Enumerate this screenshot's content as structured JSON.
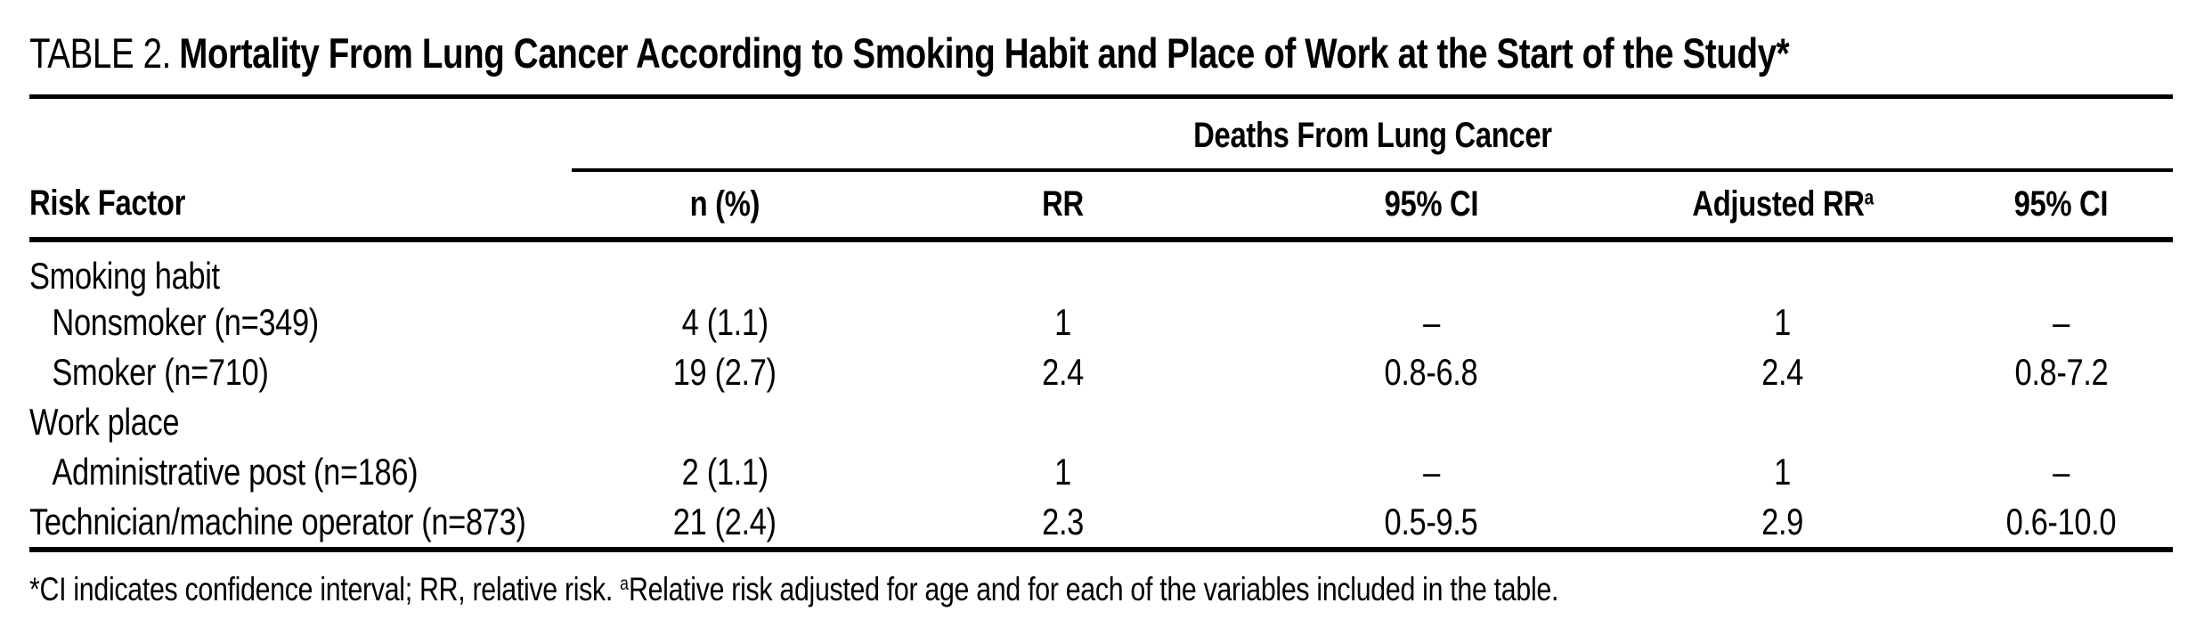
{
  "table": {
    "label": "TABLE 2.",
    "title": "Mortality From Lung Cancer According to Smoking Habit and Place of Work at the Start of the Study*",
    "spanner": "Deaths From Lung Cancer",
    "columns": [
      "Risk Factor",
      "n (%)",
      "RR",
      "95% CI",
      "Adjusted RR",
      "95% CI"
    ],
    "adjusted_rr_sup": "a",
    "rows": [
      {
        "label": "Smoking habit",
        "indent": false,
        "group": true,
        "values": [
          "",
          "",
          "",
          "",
          ""
        ]
      },
      {
        "label": "Nonsmoker (n=349)",
        "indent": true,
        "group": false,
        "values": [
          "4 (1.1)",
          "1",
          "–",
          "1",
          "–"
        ]
      },
      {
        "label": "Smoker (n=710)",
        "indent": true,
        "group": false,
        "values": [
          "19 (2.7)",
          "2.4",
          "0.8-6.8",
          "2.4",
          "0.8-7.2"
        ]
      },
      {
        "label": "Work place",
        "indent": false,
        "group": true,
        "values": [
          "",
          "",
          "",
          "",
          ""
        ]
      },
      {
        "label": "Administrative post (n=186)",
        "indent": true,
        "group": false,
        "values": [
          "2 (1.1)",
          "1",
          "–",
          "1",
          "–"
        ]
      },
      {
        "label": "Technician/machine operator (n=873)",
        "indent": false,
        "group": false,
        "values": [
          "21 (2.4)",
          "2.3",
          "0.5-9.5",
          "2.9",
          "0.6-10.0"
        ]
      }
    ],
    "footnote": {
      "part1": "*CI indicates confidence interval; RR, relative risk. ",
      "sup": "a",
      "part2": "Relative risk adjusted for age and for each of the variables included in the table."
    }
  }
}
